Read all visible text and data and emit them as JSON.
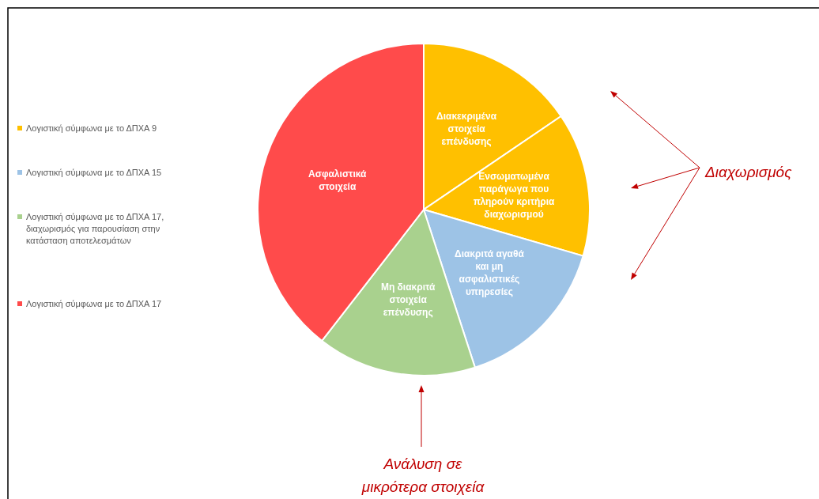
{
  "chart_data": {
    "type": "pie",
    "categories": [
      "Διακεκριμένα στοιχεία επένδυσης",
      "Ενσωματωμένα παράγωγα που πληρούν κριτήρια διαχωρισμού",
      "Διακριτά αγαθά και μη ασφαλιστικές υπηρεσίες",
      "Μη διακριτά στοιχεία επένδυσης",
      "Ασφαλιστικά στοιχεία"
    ],
    "values": [
      15.5,
      14,
      15.5,
      15.5,
      39.5
    ],
    "colors": [
      "#ffc000",
      "#ffc000",
      "#9dc3e6",
      "#a9d18e",
      "#ff4b4b"
    ],
    "annotations": [
      "Λογιστική σύμφωνα με το ΔΠΧΑ 9",
      "Λογιστική σύμφωνα με το ΔΠΧΑ 15",
      "Λογιστική σύμφωνα με το ΔΠΧΑ 17, διαχωρισμός για παρουσίαση στην κατάσταση αποτελεσμάτων",
      "Λογιστική σύμφωνα με το ΔΠΧΑ 17",
      "Διαχωρισμός",
      "Ανάλυση σε μικρότερα στοιχεία"
    ]
  }
}
